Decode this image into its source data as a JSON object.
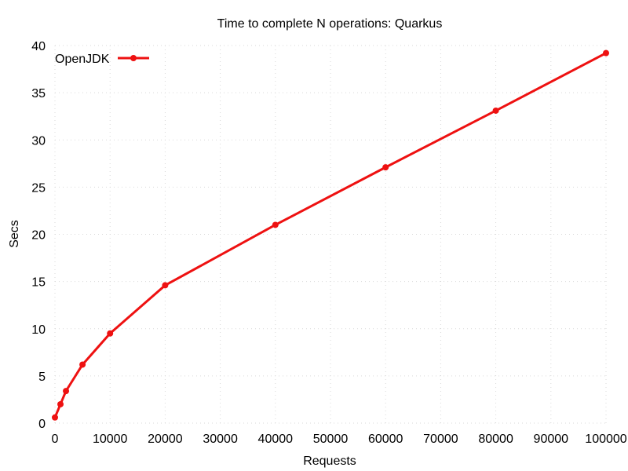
{
  "chart_data": {
    "type": "line",
    "title": "Time to complete N operations: Quarkus",
    "xlabel": "Requests",
    "ylabel": "Secs",
    "xlim": [
      0,
      100000
    ],
    "ylim": [
      0,
      40
    ],
    "x_ticks": [
      0,
      10000,
      20000,
      30000,
      40000,
      50000,
      60000,
      70000,
      80000,
      90000,
      100000
    ],
    "y_ticks": [
      0,
      5,
      10,
      15,
      20,
      25,
      30,
      35,
      40
    ],
    "grid": true,
    "legend_position": "top-left",
    "series": [
      {
        "name": "OpenJDK",
        "color": "#ee1111",
        "x": [
          0,
          1000,
          2000,
          5000,
          10000,
          20000,
          40000,
          60000,
          80000,
          100000
        ],
        "y": [
          0.6,
          2.0,
          3.4,
          6.2,
          9.5,
          14.6,
          21.0,
          27.1,
          33.1,
          39.2
        ]
      }
    ]
  }
}
